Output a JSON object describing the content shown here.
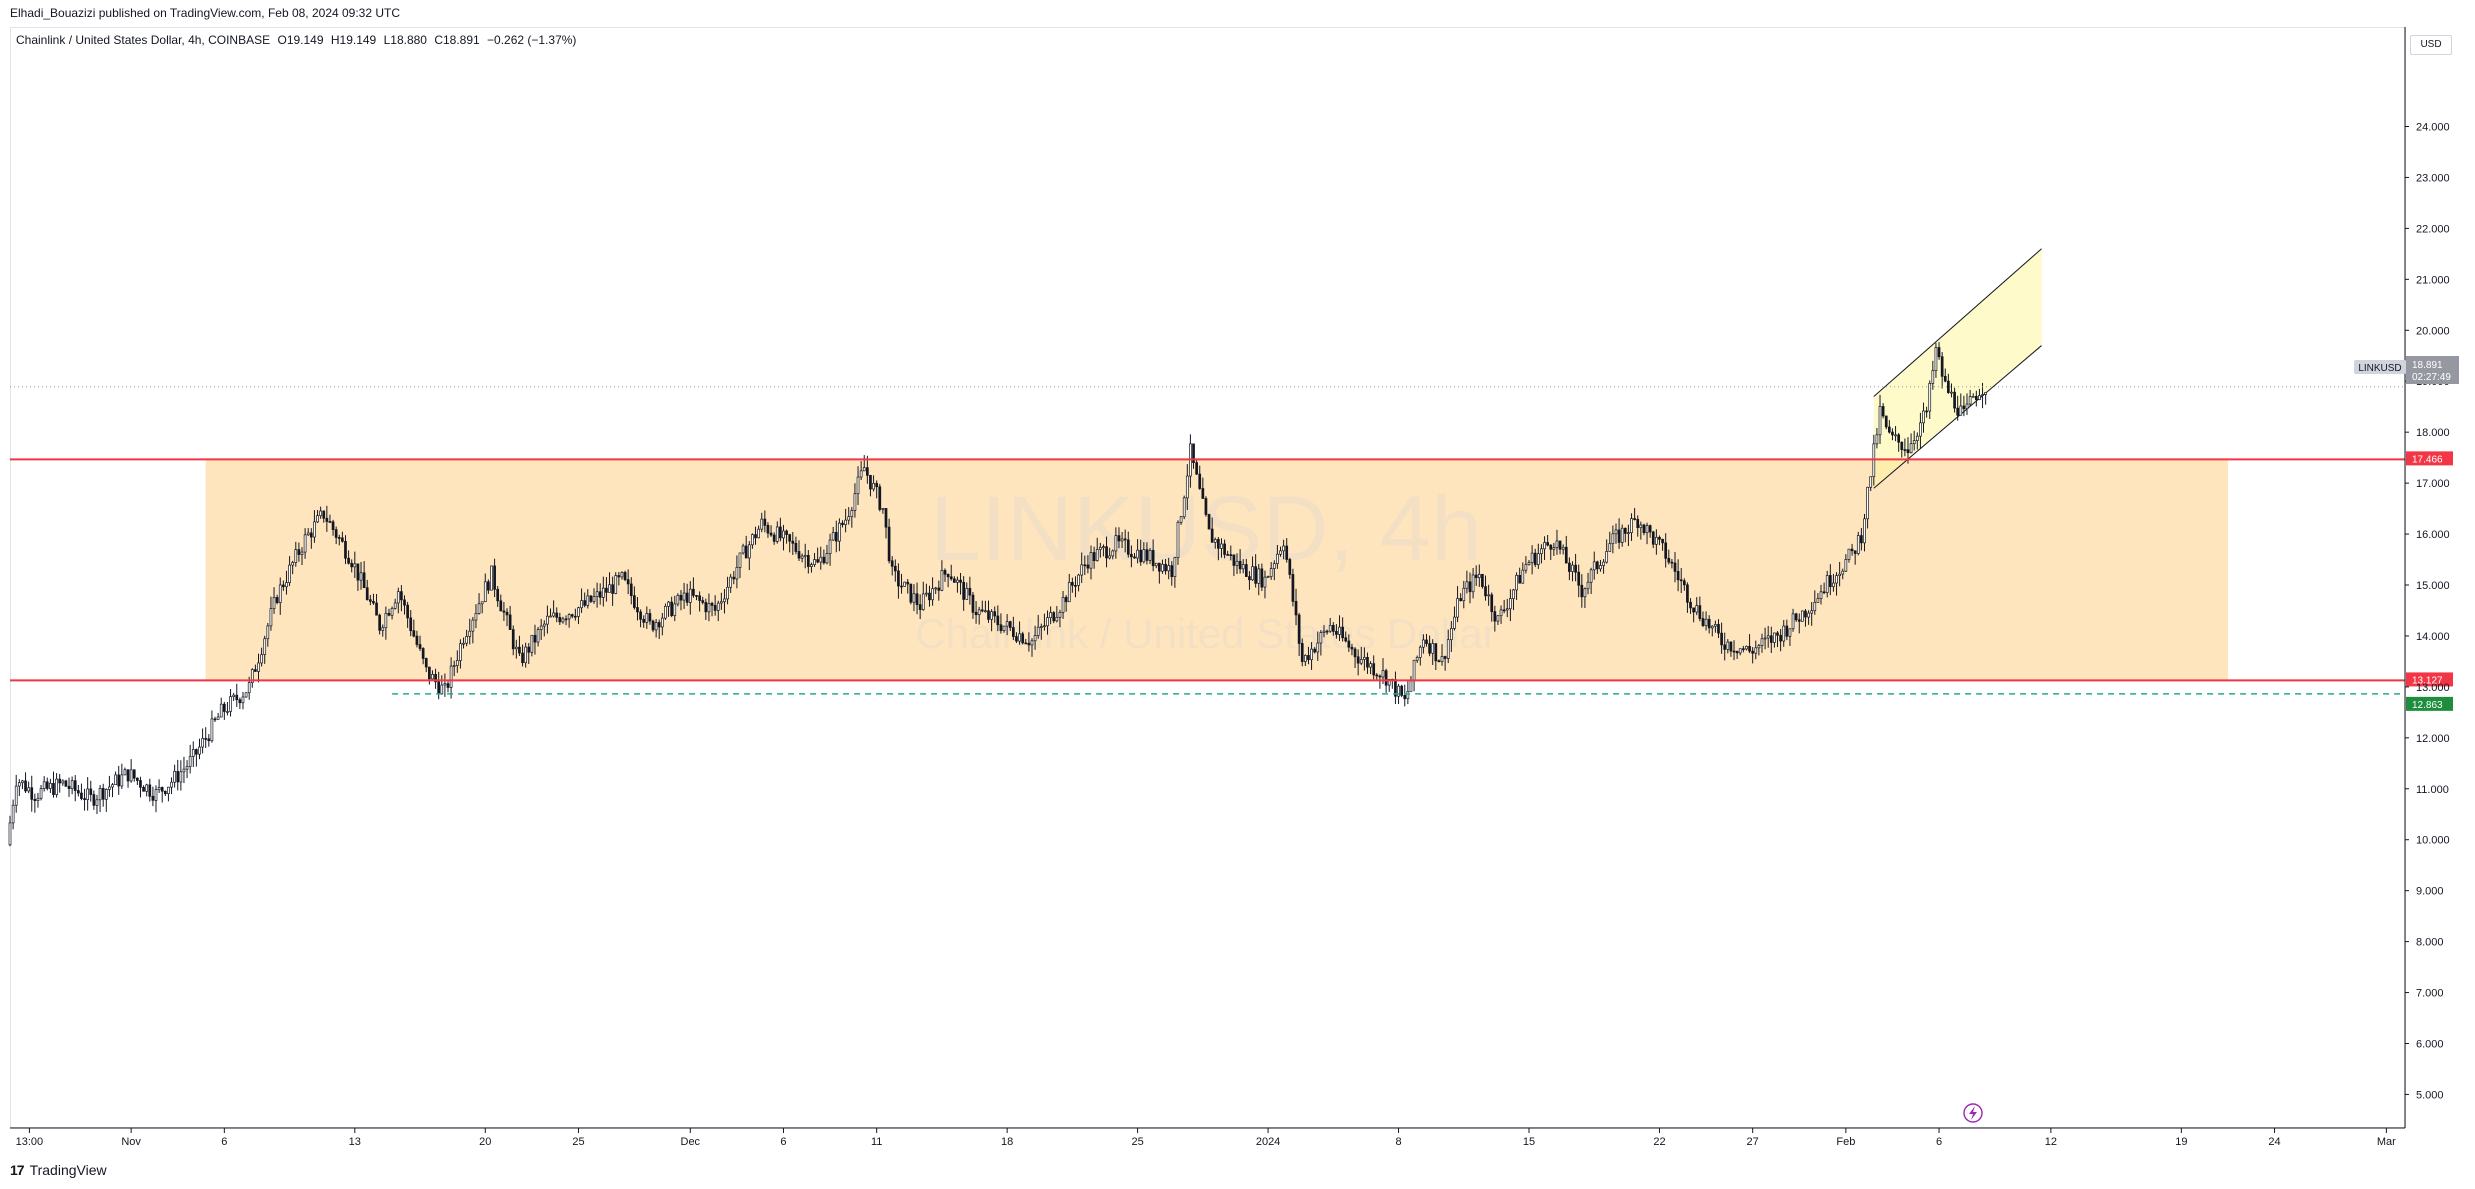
{
  "header": {
    "attribution": "Elhadi_Bouazizi published on TradingView.com, Feb 08, 2024 09:32 UTC",
    "symbol": "Chainlink / United States Dollar, 4h, COINBASE",
    "ohlc": [
      {
        "key": "O",
        "value": "19.149"
      },
      {
        "key": "H",
        "value": "19.149"
      },
      {
        "key": "L",
        "value": "18.880"
      },
      {
        "key": "C",
        "value": "18.891"
      }
    ],
    "change": "−0.262 (−1.37%)"
  },
  "currency": "USD",
  "watermark": {
    "ticker": "LINKUSD, 4h",
    "name": "Chainlink / United States Dollar"
  },
  "price_tag": {
    "ticker": "LINKUSD",
    "price": "18.891",
    "countdown": "02:27:49"
  },
  "footer": {
    "logo_mark": "17",
    "brand": "TradingView"
  },
  "chart_data": {
    "type": "candlestick",
    "y_axis": {
      "min": 4.4,
      "max": 25.6,
      "ticks": [
        {
          "value": 5,
          "label": "5.000"
        },
        {
          "value": 6,
          "label": "6.000"
        },
        {
          "value": 7,
          "label": "7.000"
        },
        {
          "value": 8,
          "label": "8.000"
        },
        {
          "value": 9,
          "label": "9.000"
        },
        {
          "value": 10,
          "label": "10.000"
        },
        {
          "value": 11,
          "label": "11.000"
        },
        {
          "value": 12,
          "label": "12.000"
        },
        {
          "value": 13,
          "label": "13.000"
        },
        {
          "value": 14,
          "label": "14.000"
        },
        {
          "value": 15,
          "label": "15.000"
        },
        {
          "value": 16,
          "label": "16.000"
        },
        {
          "value": 17,
          "label": "17.000"
        },
        {
          "value": 18,
          "label": "18.000"
        },
        {
          "value": 19,
          "label": "19.000"
        },
        {
          "value": 20,
          "label": "20.000"
        },
        {
          "value": 21,
          "label": "21.000"
        },
        {
          "value": 22,
          "label": "22.000"
        },
        {
          "value": 23,
          "label": "23.000"
        },
        {
          "value": 24,
          "label": "24.000"
        }
      ]
    },
    "x_axis": {
      "start": "2023-10-25T12:00",
      "end": "2024-03-02T00:00",
      "ticks": [
        {
          "date": "2023-10-26T13:00",
          "label": "13:00"
        },
        {
          "date": "2023-11-01T00:00",
          "label": "Nov"
        },
        {
          "date": "2023-11-06T00:00",
          "label": "6"
        },
        {
          "date": "2023-11-13T00:00",
          "label": "13"
        },
        {
          "date": "2023-11-20T00:00",
          "label": "20"
        },
        {
          "date": "2023-11-25T00:00",
          "label": "25"
        },
        {
          "date": "2023-12-01T00:00",
          "label": "Dec"
        },
        {
          "date": "2023-12-06T00:00",
          "label": "6"
        },
        {
          "date": "2023-12-11T00:00",
          "label": "11"
        },
        {
          "date": "2023-12-18T00:00",
          "label": "18"
        },
        {
          "date": "2023-12-25T00:00",
          "label": "25"
        },
        {
          "date": "2024-01-01T00:00",
          "label": "2024"
        },
        {
          "date": "2024-01-08T00:00",
          "label": "8"
        },
        {
          "date": "2024-01-15T00:00",
          "label": "15"
        },
        {
          "date": "2024-01-22T00:00",
          "label": "22"
        },
        {
          "date": "2024-01-27T00:00",
          "label": "27"
        },
        {
          "date": "2024-02-01T00:00",
          "label": "Feb"
        },
        {
          "date": "2024-02-06T00:00",
          "label": "6"
        },
        {
          "date": "2024-02-12T00:00",
          "label": "12"
        },
        {
          "date": "2024-02-19T00:00",
          "label": "19"
        },
        {
          "date": "2024-02-24T00:00",
          "label": "24"
        },
        {
          "date": "2024-03-01T00:00",
          "label": "Mar"
        }
      ]
    },
    "price_path": [
      {
        "date": "2023-10-25T12:00",
        "price": 9.9
      },
      {
        "date": "2023-10-26T00:00",
        "price": 11.2
      },
      {
        "date": "2023-10-27T00:00",
        "price": 10.9
      },
      {
        "date": "2023-10-28T12:00",
        "price": 11.1
      },
      {
        "date": "2023-10-30T00:00",
        "price": 10.8
      },
      {
        "date": "2023-11-01T00:00",
        "price": 11.3
      },
      {
        "date": "2023-11-02T12:00",
        "price": 10.9
      },
      {
        "date": "2023-11-03T12:00",
        "price": 11.2
      },
      {
        "date": "2023-11-04T12:00",
        "price": 11.6
      },
      {
        "date": "2023-11-06T00:00",
        "price": 12.5
      },
      {
        "date": "2023-11-07T12:00",
        "price": 13.0
      },
      {
        "date": "2023-11-09T00:00",
        "price": 14.8
      },
      {
        "date": "2023-11-10T12:00",
        "price": 15.9
      },
      {
        "date": "2023-11-11T12:00",
        "price": 16.4
      },
      {
        "date": "2023-11-13T00:00",
        "price": 15.5
      },
      {
        "date": "2023-11-14T12:00",
        "price": 14.2
      },
      {
        "date": "2023-11-15T12:00",
        "price": 14.9
      },
      {
        "date": "2023-11-17T00:00",
        "price": 13.3
      },
      {
        "date": "2023-11-18T00:00",
        "price": 12.9
      },
      {
        "date": "2023-11-19T00:00",
        "price": 14.0
      },
      {
        "date": "2023-11-20T12:00",
        "price": 15.2
      },
      {
        "date": "2023-11-22T00:00",
        "price": 13.5
      },
      {
        "date": "2023-11-23T12:00",
        "price": 14.3
      },
      {
        "date": "2023-11-25T12:00",
        "price": 14.6
      },
      {
        "date": "2023-11-27T12:00",
        "price": 15.1
      },
      {
        "date": "2023-11-29T00:00",
        "price": 14.2
      },
      {
        "date": "2023-12-01T00:00",
        "price": 14.8
      },
      {
        "date": "2023-12-02T12:00",
        "price": 14.5
      },
      {
        "date": "2023-12-04T00:00",
        "price": 15.6
      },
      {
        "date": "2023-12-05T00:00",
        "price": 16.2
      },
      {
        "date": "2023-12-06T12:00",
        "price": 15.8
      },
      {
        "date": "2023-12-08T00:00",
        "price": 15.4
      },
      {
        "date": "2023-12-09T12:00",
        "price": 16.3
      },
      {
        "date": "2023-12-10T12:00",
        "price": 17.3
      },
      {
        "date": "2023-12-11T12:00",
        "price": 16.5
      },
      {
        "date": "2023-12-12T00:00",
        "price": 15.2
      },
      {
        "date": "2023-12-13T12:00",
        "price": 14.6
      },
      {
        "date": "2023-12-15T00:00",
        "price": 15.3
      },
      {
        "date": "2023-12-16T12:00",
        "price": 14.5
      },
      {
        "date": "2023-12-18T00:00",
        "price": 14.2
      },
      {
        "date": "2023-12-19T12:00",
        "price": 13.9
      },
      {
        "date": "2023-12-21T00:00",
        "price": 14.6
      },
      {
        "date": "2023-12-22T12:00",
        "price": 15.5
      },
      {
        "date": "2023-12-24T00:00",
        "price": 15.8
      },
      {
        "date": "2023-12-25T12:00",
        "price": 15.6
      },
      {
        "date": "2023-12-27T00:00",
        "price": 15.3
      },
      {
        "date": "2023-12-28T00:00",
        "price": 17.6
      },
      {
        "date": "2023-12-29T00:00",
        "price": 16.0
      },
      {
        "date": "2023-12-30T12:00",
        "price": 15.4
      },
      {
        "date": "2024-01-01T00:00",
        "price": 15.1
      },
      {
        "date": "2024-01-02T00:00",
        "price": 15.9
      },
      {
        "date": "2024-01-03T00:00",
        "price": 13.5
      },
      {
        "date": "2024-01-04T12:00",
        "price": 14.2
      },
      {
        "date": "2024-01-06T00:00",
        "price": 13.6
      },
      {
        "date": "2024-01-07T12:00",
        "price": 13.2
      },
      {
        "date": "2024-01-08T12:00",
        "price": 12.7
      },
      {
        "date": "2024-01-09T12:00",
        "price": 14.0
      },
      {
        "date": "2024-01-10T12:00",
        "price": 13.5
      },
      {
        "date": "2024-01-11T12:00",
        "price": 14.8
      },
      {
        "date": "2024-01-12T12:00",
        "price": 15.2
      },
      {
        "date": "2024-01-13T12:00",
        "price": 14.3
      },
      {
        "date": "2024-01-15T00:00",
        "price": 15.4
      },
      {
        "date": "2024-01-16T12:00",
        "price": 15.9
      },
      {
        "date": "2024-01-18T00:00",
        "price": 14.9
      },
      {
        "date": "2024-01-19T12:00",
        "price": 15.8
      },
      {
        "date": "2024-01-21T00:00",
        "price": 16.3
      },
      {
        "date": "2024-01-22T12:00",
        "price": 15.6
      },
      {
        "date": "2024-01-24T00:00",
        "price": 14.6
      },
      {
        "date": "2024-01-25T12:00",
        "price": 13.9
      },
      {
        "date": "2024-01-27T00:00",
        "price": 13.7
      },
      {
        "date": "2024-01-28T12:00",
        "price": 14.0
      },
      {
        "date": "2024-01-30T00:00",
        "price": 14.5
      },
      {
        "date": "2024-01-31T12:00",
        "price": 15.2
      },
      {
        "date": "2024-02-01T12:00",
        "price": 15.6
      },
      {
        "date": "2024-02-02T00:00",
        "price": 16.0
      },
      {
        "date": "2024-02-02T12:00",
        "price": 17.2
      },
      {
        "date": "2024-02-03T00:00",
        "price": 18.4
      },
      {
        "date": "2024-02-03T12:00",
        "price": 17.9
      },
      {
        "date": "2024-02-04T12:00",
        "price": 17.7
      },
      {
        "date": "2024-02-05T12:00",
        "price": 18.4
      },
      {
        "date": "2024-02-06T00:00",
        "price": 19.6
      },
      {
        "date": "2024-02-06T12:00",
        "price": 18.9
      },
      {
        "date": "2024-02-07T00:00",
        "price": 18.6
      },
      {
        "date": "2024-02-07T12:00",
        "price": 18.3
      },
      {
        "date": "2024-02-08T00:00",
        "price": 18.7
      },
      {
        "date": "2024-02-08T12:00",
        "price": 18.9
      }
    ],
    "horizontal_lines": [
      {
        "price": 17.466,
        "label": "17.466",
        "color": "#f23645",
        "style": "solid"
      },
      {
        "price": 13.127,
        "label": "13.127",
        "color": "#f23645",
        "style": "solid"
      },
      {
        "price": 12.863,
        "label": "12.863",
        "color": "#22ab94",
        "style": "dashed",
        "from": "2023-11-15T00:00"
      }
    ],
    "range_box": {
      "from": "2023-11-05T00:00",
      "to": "2024-02-21T12:00",
      "top": 17.466,
      "bottom": 13.127,
      "color": "#ffe0b2"
    },
    "channel": {
      "upper": [
        {
          "date": "2024-02-02T12:00",
          "price": 18.7
        },
        {
          "date": "2024-02-11T12:00",
          "price": 21.6
        }
      ],
      "lower": [
        {
          "date": "2024-02-02T12:00",
          "price": 16.9
        },
        {
          "date": "2024-02-11T12:00",
          "price": 19.7
        }
      ],
      "color": "#fff59d"
    },
    "last_price": 18.891,
    "colors": {
      "up": "#131722",
      "down": "#131722",
      "level": "#f23645",
      "support": "#22ab94",
      "last": "#9598a1"
    }
  }
}
